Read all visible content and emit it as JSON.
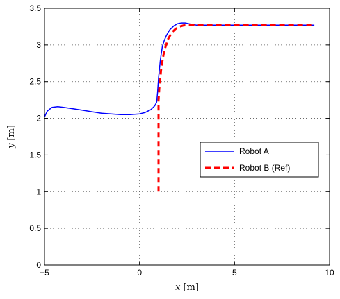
{
  "chart_data": {
    "type": "line",
    "xlabel_var": "x",
    "xlabel_unit": "[m]",
    "ylabel_var": "y",
    "ylabel_unit": "[m]",
    "xlim": [
      -5,
      10
    ],
    "ylim": [
      0,
      3.5
    ],
    "xticks": [
      -5,
      0,
      5,
      10
    ],
    "xtick_labels": [
      "−5",
      "0",
      "5",
      "10"
    ],
    "yticks": [
      0,
      0.5,
      1,
      1.5,
      2,
      2.5,
      3,
      3.5
    ],
    "ytick_labels": [
      "0",
      "0.5",
      "1",
      "1.5",
      "2",
      "2.5",
      "3",
      "3.5"
    ],
    "grid": true,
    "legend_position": "center-right",
    "series": [
      {
        "name": "Robot A",
        "color": "#0000ff",
        "style": "solid",
        "x": [
          -5.0,
          -4.85,
          -4.6,
          -4.3,
          -4.0,
          -3.5,
          -3.0,
          -2.5,
          -2.0,
          -1.5,
          -1.0,
          -0.5,
          0.0,
          0.3,
          0.6,
          0.8,
          0.9,
          0.95,
          1.0,
          1.1,
          1.2,
          1.3,
          1.4,
          1.5,
          1.6,
          1.8,
          2.0,
          2.2,
          2.4,
          2.6,
          2.8,
          3.0,
          3.5,
          4.0,
          5.0,
          6.0,
          7.0,
          8.0,
          9.2
        ],
        "y": [
          2.02,
          2.1,
          2.15,
          2.16,
          2.15,
          2.13,
          2.11,
          2.09,
          2.07,
          2.06,
          2.05,
          2.05,
          2.06,
          2.08,
          2.12,
          2.17,
          2.22,
          2.35,
          2.55,
          2.8,
          2.98,
          3.06,
          3.12,
          3.17,
          3.21,
          3.26,
          3.29,
          3.3,
          3.3,
          3.29,
          3.28,
          3.27,
          3.27,
          3.27,
          3.27,
          3.27,
          3.27,
          3.27,
          3.27
        ]
      },
      {
        "name": "Robot B (Ref)",
        "color": "#ff0000",
        "style": "dashed",
        "x": [
          1.0,
          1.0,
          1.05,
          1.15,
          1.3,
          1.5,
          1.7,
          1.9,
          2.1,
          2.3,
          2.5,
          3.0,
          4.0,
          5.0,
          6.0,
          7.0,
          8.0,
          9.2
        ],
        "y": [
          1.0,
          2.25,
          2.45,
          2.7,
          2.92,
          3.08,
          3.17,
          3.22,
          3.25,
          3.265,
          3.27,
          3.27,
          3.27,
          3.27,
          3.27,
          3.27,
          3.27,
          3.27
        ]
      }
    ]
  }
}
